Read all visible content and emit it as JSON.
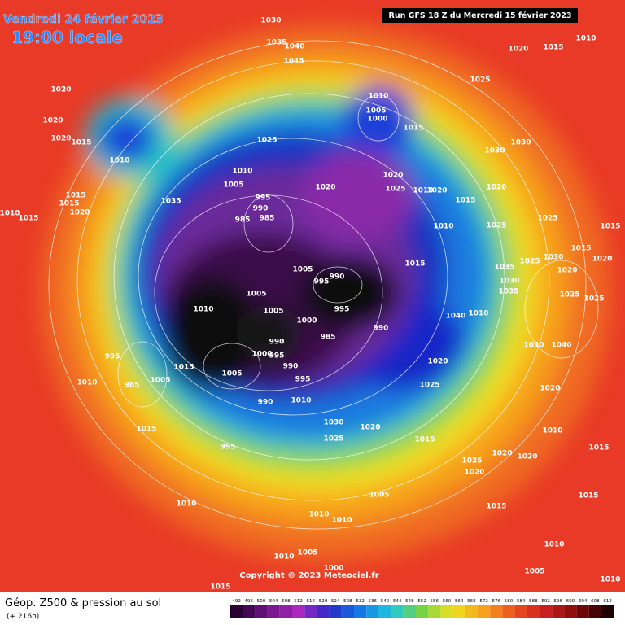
{
  "header": {
    "date": "Vendredi 24 février 2023",
    "time": "19:00 locale",
    "run": "Run GFS 18 Z du Mercredi 15 février 2023"
  },
  "map": {
    "copyright": "Copyright © 2023 Meteociel.fr",
    "isobar_labels": [
      "1030",
      "1035",
      "1040",
      "1045",
      "1010",
      "1020",
      "1015",
      "1025",
      "1020",
      "1020",
      "1020",
      "1015",
      "1010",
      "1010",
      "1005",
      "1000",
      "1015",
      "1025",
      "1030",
      "1030",
      "1020",
      "1020",
      "1025",
      "1010",
      "1020",
      "1015",
      "1020",
      "995",
      "990",
      "985",
      "985",
      "1005",
      "1010",
      "1035",
      "1015",
      "1015",
      "1020",
      "1010",
      "1015",
      "1025",
      "1015",
      "1025",
      "1010",
      "1015",
      "1030",
      "1020",
      "1025",
      "1020",
      "1035",
      "1030",
      "1035",
      "1025",
      "1025",
      "1015",
      "1005",
      "990",
      "995",
      "1005",
      "1005",
      "1010",
      "995",
      "1000",
      "990",
      "985",
      "990",
      "995",
      "1000",
      "990",
      "1010",
      "1040",
      "1030",
      "1040",
      "1020",
      "995",
      "1015",
      "1005",
      "995",
      "985",
      "1005",
      "1010",
      "990",
      "1010",
      "1025",
      "1030",
      "1020",
      "1025",
      "1015",
      "995",
      "1015",
      "1020",
      "1020",
      "1015",
      "1025",
      "1020",
      "1010",
      "1020",
      "1005",
      "1015",
      "1010",
      "1010",
      "1010",
      "1010",
      "1015",
      "1010",
      "1005",
      "1000",
      "1015",
      "1005",
      "1010"
    ]
  },
  "footer": {
    "title": "Géop. Z500 & pression au sol",
    "lead": "(+ 216h)",
    "scale": [
      "492",
      "496",
      "500",
      "504",
      "508",
      "512",
      "516",
      "520",
      "524",
      "528",
      "532",
      "536",
      "540",
      "544",
      "548",
      "552",
      "556",
      "560",
      "564",
      "568",
      "572",
      "576",
      "580",
      "584",
      "588",
      "592",
      "596",
      "600",
      "604",
      "608",
      "612"
    ]
  }
}
